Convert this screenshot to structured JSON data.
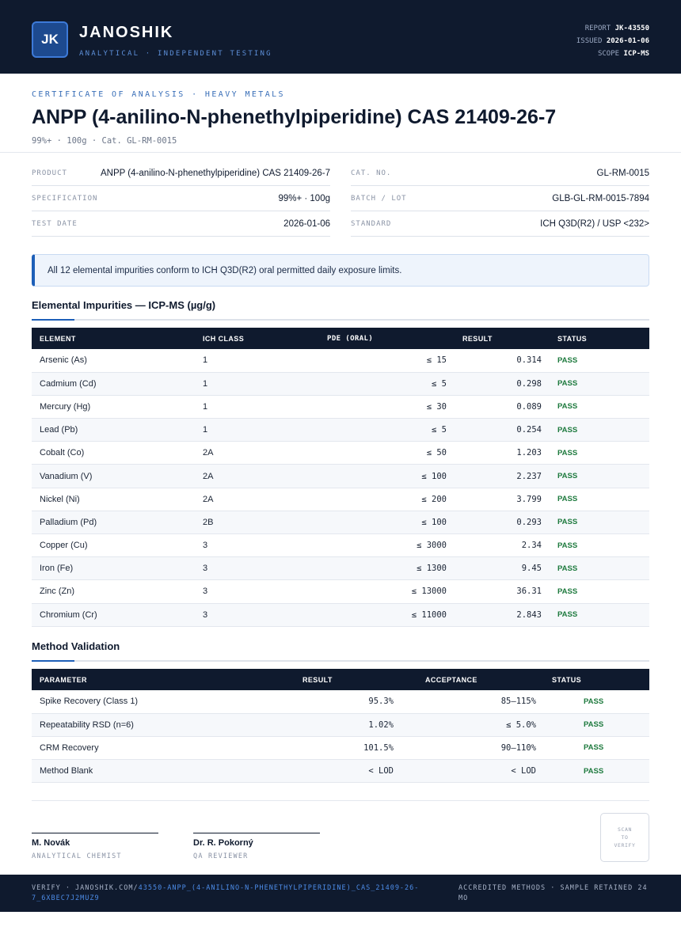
{
  "header": {
    "logo": "JK",
    "brand": "JANOSHIK",
    "tagline": "ANALYTICAL · INDEPENDENT TESTING",
    "report_label": "REPORT",
    "report_value": "JK-43550",
    "issued_label": "ISSUED",
    "issued_value": "2026-01-06",
    "scope_label": "SCOPE",
    "scope_value": "ICP-MS"
  },
  "document": {
    "eyebrow": "CERTIFICATE OF ANALYSIS · HEAVY METALS",
    "title": "ANPP (4-anilino-N-phenethylpiperidine) CAS 21409-26-7",
    "subline": "99%+ · 100g  ·  Cat. GL-RM-0015"
  },
  "info_left": [
    {
      "label": "PRODUCT",
      "value": "ANPP (4-anilino-N-phenethylpiperidine) CAS 21409-26-7"
    },
    {
      "label": "SPECIFICATION",
      "value": "99%+ · 100g"
    },
    {
      "label": "TEST DATE",
      "value": "2026-01-06"
    }
  ],
  "info_right": [
    {
      "label": "CAT. NO.",
      "value": "GL-RM-0015"
    },
    {
      "label": "BATCH / LOT",
      "value": "GLB-GL-RM-0015-7894"
    },
    {
      "label": "STANDARD",
      "value": "ICH Q3D(R2) / USP <232>"
    }
  ],
  "notice": "All 12 elemental impurities conform to ICH Q3D(R2) oral permitted daily exposure limits.",
  "impurities": {
    "title": "Elemental Impurities — ICP-MS (µg/g)",
    "headers": {
      "element": "ELEMENT",
      "class": "ICH CLASS",
      "pde": "PDE (ORAL)",
      "result": "RESULT",
      "status": "STATUS"
    },
    "rows": [
      {
        "element": "Arsenic (As)",
        "class": "1",
        "pde": "≤ 15",
        "result": "0.314",
        "status": "PASS"
      },
      {
        "element": "Cadmium (Cd)",
        "class": "1",
        "pde": "≤ 5",
        "result": "0.298",
        "status": "PASS"
      },
      {
        "element": "Mercury (Hg)",
        "class": "1",
        "pde": "≤ 30",
        "result": "0.089",
        "status": "PASS"
      },
      {
        "element": "Lead (Pb)",
        "class": "1",
        "pde": "≤ 5",
        "result": "0.254",
        "status": "PASS"
      },
      {
        "element": "Cobalt (Co)",
        "class": "2A",
        "pde": "≤ 50",
        "result": "1.203",
        "status": "PASS"
      },
      {
        "element": "Vanadium (V)",
        "class": "2A",
        "pde": "≤ 100",
        "result": "2.237",
        "status": "PASS"
      },
      {
        "element": "Nickel (Ni)",
        "class": "2A",
        "pde": "≤ 200",
        "result": "3.799",
        "status": "PASS"
      },
      {
        "element": "Palladium (Pd)",
        "class": "2B",
        "pde": "≤ 100",
        "result": "0.293",
        "status": "PASS"
      },
      {
        "element": "Copper (Cu)",
        "class": "3",
        "pde": "≤ 3000",
        "result": "2.34",
        "status": "PASS"
      },
      {
        "element": "Iron (Fe)",
        "class": "3",
        "pde": "≤ 1300",
        "result": "9.45",
        "status": "PASS"
      },
      {
        "element": "Zinc (Zn)",
        "class": "3",
        "pde": "≤ 13000",
        "result": "36.31",
        "status": "PASS"
      },
      {
        "element": "Chromium (Cr)",
        "class": "3",
        "pde": "≤ 11000",
        "result": "2.843",
        "status": "PASS"
      }
    ]
  },
  "validation": {
    "title": "Method Validation",
    "headers": {
      "parameter": "PARAMETER",
      "result": "RESULT",
      "acceptance": "ACCEPTANCE",
      "status": "STATUS"
    },
    "rows": [
      {
        "parameter": "Spike Recovery (Class 1)",
        "result": "95.3%",
        "acceptance": "85–115%",
        "status": "PASS"
      },
      {
        "parameter": "Repeatability RSD (n=6)",
        "result": "1.02%",
        "acceptance": "≤ 5.0%",
        "status": "PASS"
      },
      {
        "parameter": "CRM Recovery",
        "result": "101.5%",
        "acceptance": "90–110%",
        "status": "PASS"
      },
      {
        "parameter": "Method Blank",
        "result": "< LOD",
        "acceptance": "< LOD",
        "status": "PASS"
      }
    ]
  },
  "signatures": [
    {
      "name": "M. Novák",
      "role": "ANALYTICAL CHEMIST"
    },
    {
      "name": "Dr. R. Pokorný",
      "role": "QA REVIEWER"
    }
  ],
  "qr_text": "SCAN TO VERIFY",
  "footer": {
    "verify_prefix": "VERIFY · JANOSHIK.COM/",
    "verify_link": "43550-ANPP_(4-ANILINO-N-PHENETHYLPIPERIDINE)_CAS_21409-26-7_6XBEC7J2MUZ9",
    "right": "ACCREDITED METHODS · SAMPLE RETAINED 24 MO"
  },
  "colors": {
    "navy": "#0f1a2e",
    "accent": "#1d5fb8",
    "pass": "#1e7a3e"
  }
}
